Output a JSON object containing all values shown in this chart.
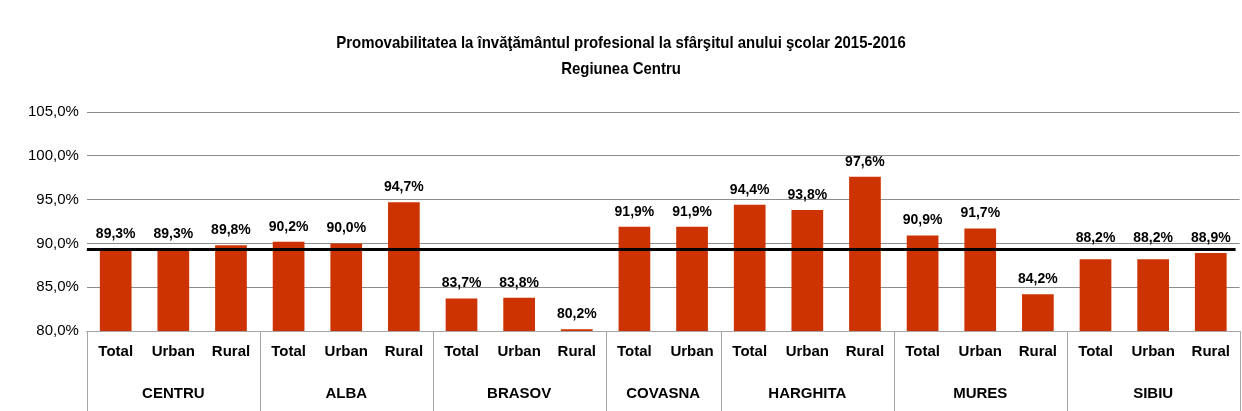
{
  "chart_data": {
    "type": "bar",
    "title": "Promovabilitatea la învăţământul profesional la sfârşitul anului şcolar 2015-2016",
    "subtitle": "Regiunea Centru",
    "categories": [
      "Total",
      "Urban",
      "Rural",
      "Total",
      "Urban",
      "Rural",
      "Total",
      "Urban",
      "Rural",
      "Total",
      "Urban",
      "Total",
      "Urban",
      "Rural",
      "Total",
      "Urban",
      "Rural",
      "Total",
      "Urban",
      "Rural"
    ],
    "values": [
      89.3,
      89.3,
      89.8,
      90.2,
      90.0,
      94.7,
      83.7,
      83.8,
      80.2,
      91.9,
      91.9,
      94.4,
      93.8,
      97.6,
      90.9,
      91.7,
      84.2,
      88.2,
      88.2,
      88.9
    ],
    "value_labels": [
      "89,3%",
      "89,3%",
      "89,8%",
      "90,2%",
      "90,0%",
      "94,7%",
      "83,7%",
      "83,8%",
      "80,2%",
      "91,9%",
      "91,9%",
      "94,4%",
      "93,8%",
      "97,6%",
      "90,9%",
      "91,7%",
      "84,2%",
      "88,2%",
      "88,2%",
      "88,9%"
    ],
    "color": "#cc3300",
    "ylim": [
      80,
      105
    ],
    "yticks": [
      {
        "value": 80,
        "label": "80,0%"
      },
      {
        "value": 85,
        "label": "85,0%"
      },
      {
        "value": 90,
        "label": "90,0%"
      },
      {
        "value": 95,
        "label": "95,0%"
      },
      {
        "value": 100,
        "label": "100,0%"
      },
      {
        "value": 105,
        "label": "105,0%"
      }
    ],
    "grid": "y",
    "ref_lines": [
      {
        "axis": "y",
        "value": 89.3,
        "color": "#000000"
      }
    ],
    "annotations": [
      "CENTRU",
      "ALBA",
      "BRASOV",
      "COVASNA",
      "HARGHITA",
      "MURES",
      "SIBIU"
    ]
  }
}
